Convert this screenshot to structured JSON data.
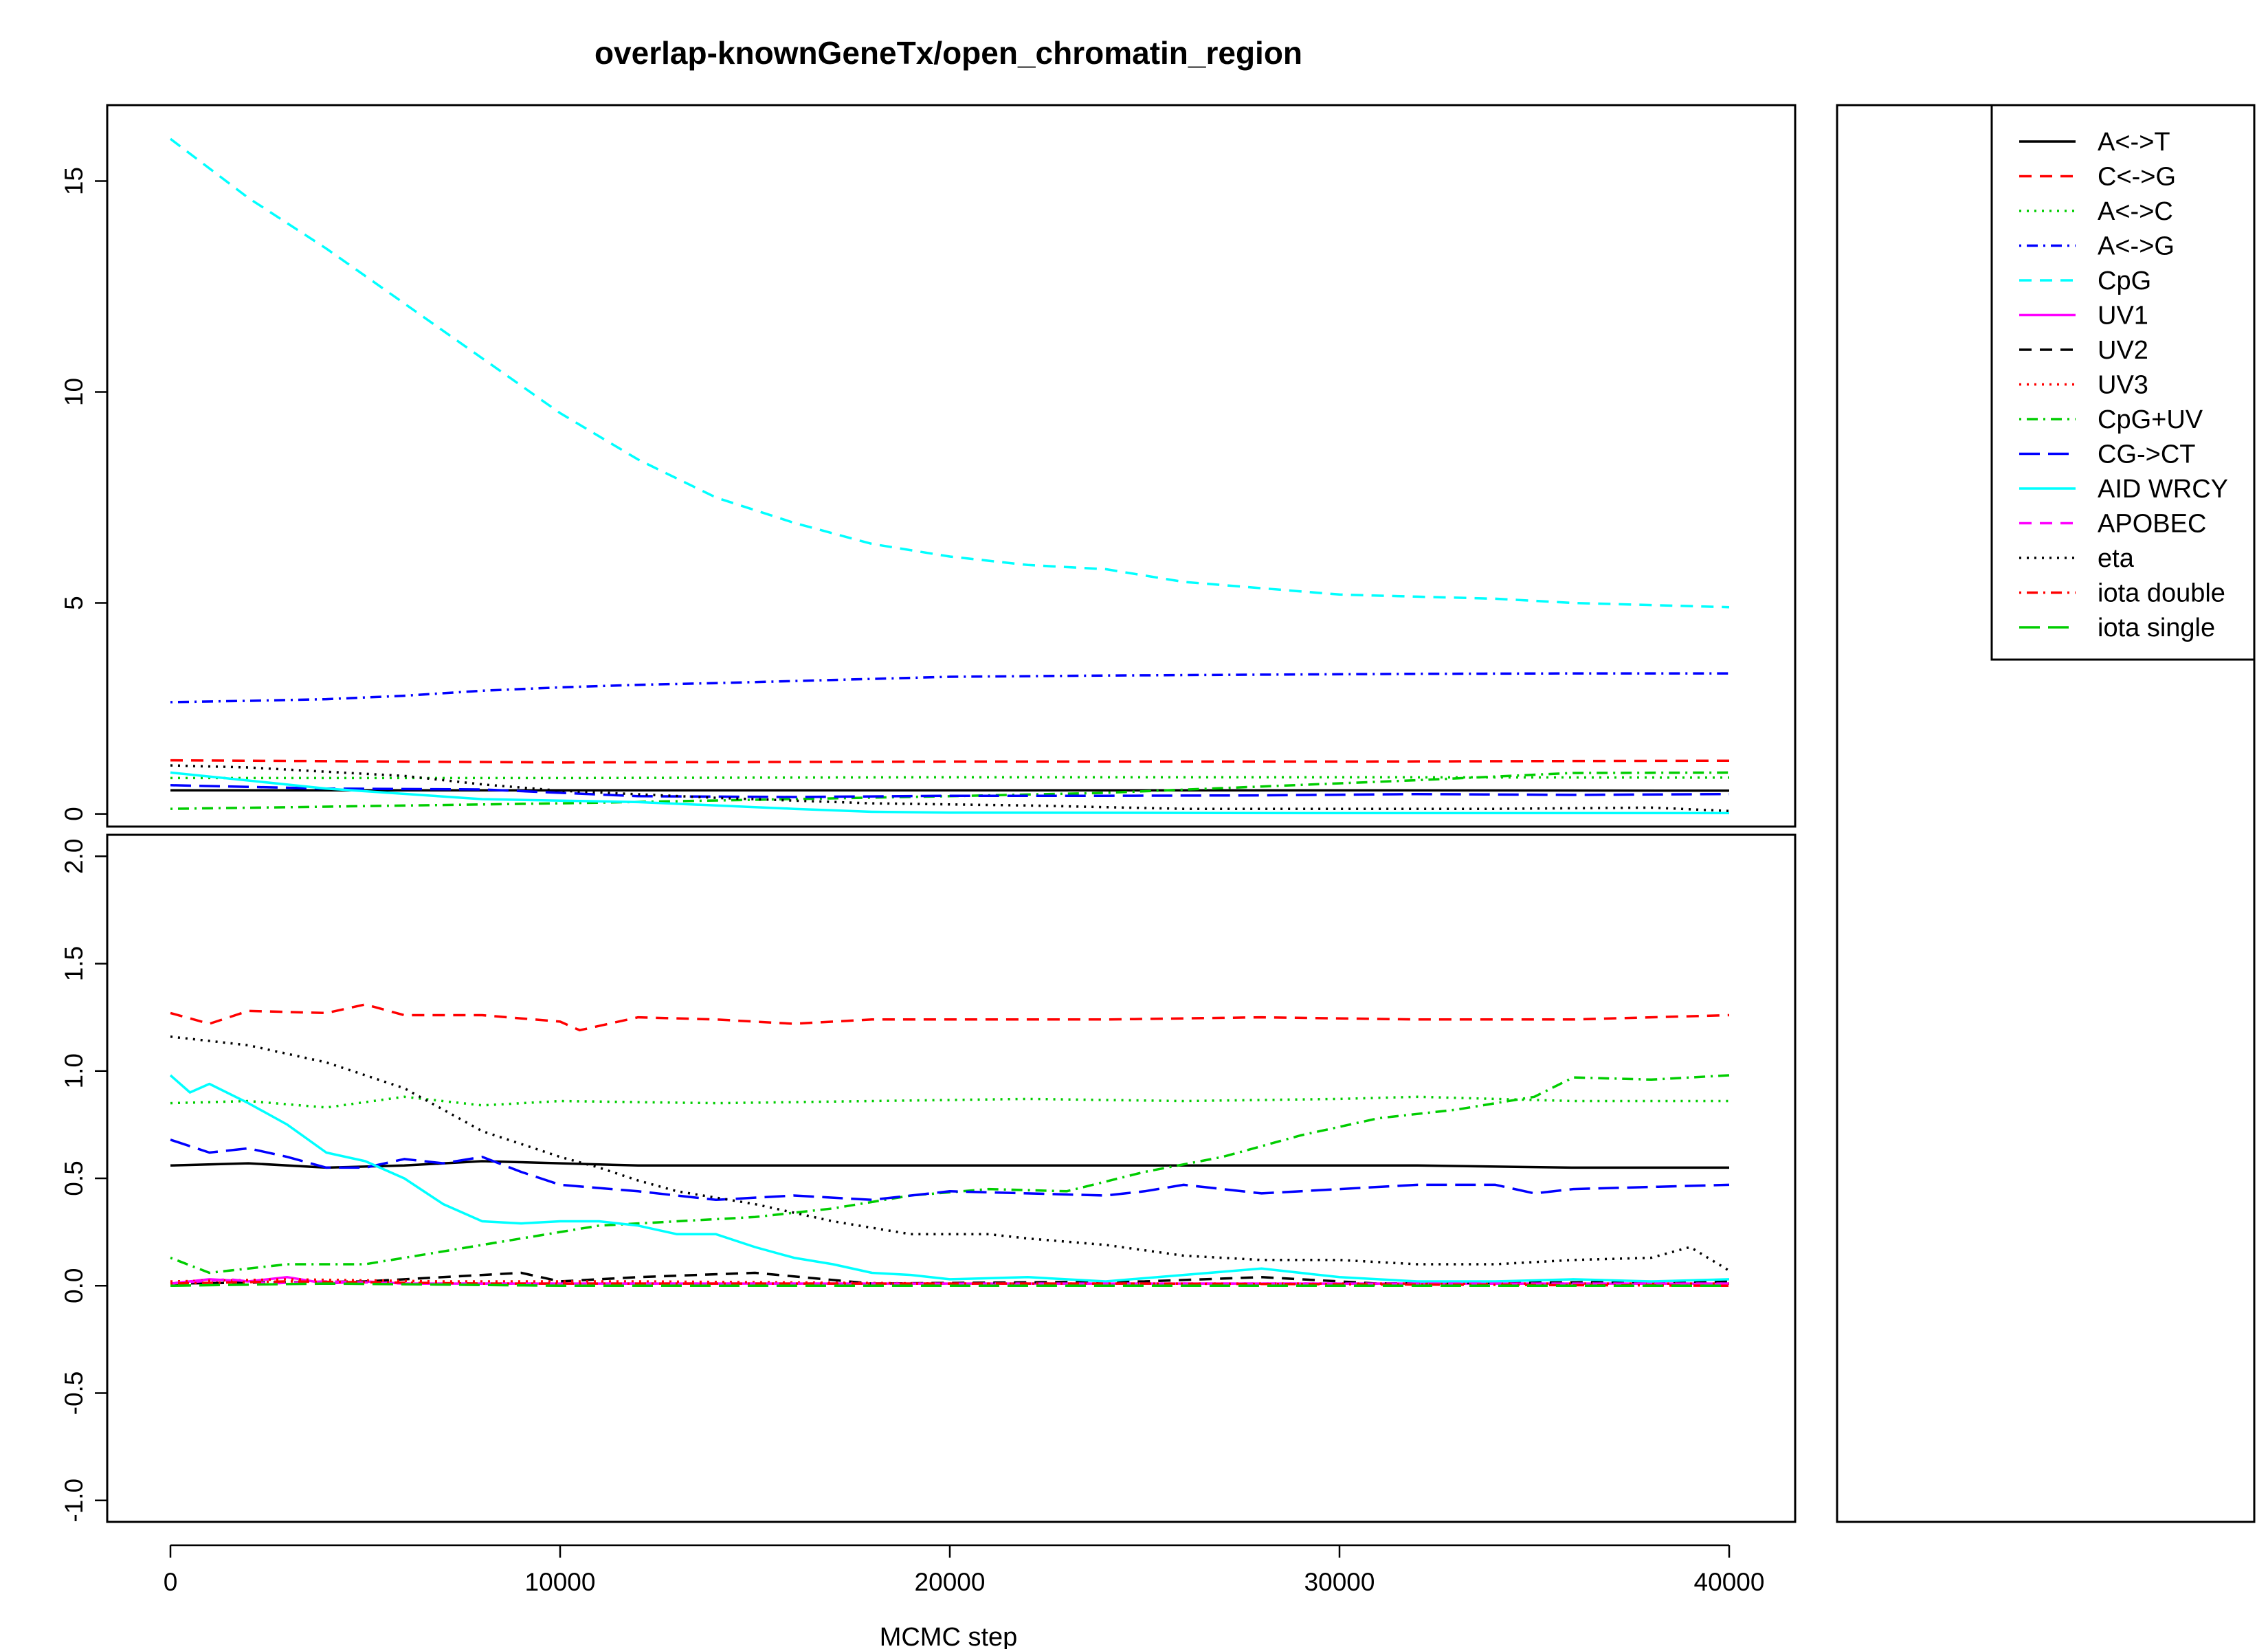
{
  "chart_data": {
    "type": "line",
    "title": "overlap-knownGeneTx/open_chromatin_region",
    "xlabel": "MCMC step",
    "x_range": [
      0,
      40000
    ],
    "x_ticks": [
      "0",
      "10000",
      "20000",
      "30000",
      "40000"
    ],
    "legend_position": "right",
    "legend": [
      {
        "name": "A<->T",
        "color": "#000000",
        "dash": "solid"
      },
      {
        "name": "C<->G",
        "color": "#ff0000",
        "dash": "dashed"
      },
      {
        "name": "A<->C",
        "color": "#00cd00",
        "dash": "dotted"
      },
      {
        "name": "A<->G",
        "color": "#0000ff",
        "dash": "dotdash"
      },
      {
        "name": "CpG",
        "color": "#00ffff",
        "dash": "dashed"
      },
      {
        "name": "UV1",
        "color": "#ff00ff",
        "dash": "solid"
      },
      {
        "name": "UV2",
        "color": "#000000",
        "dash": "dashed"
      },
      {
        "name": "UV3",
        "color": "#ff0000",
        "dash": "dotted"
      },
      {
        "name": "CpG+UV",
        "color": "#00cd00",
        "dash": "dotdash"
      },
      {
        "name": "CG->CT",
        "color": "#0000ff",
        "dash": "longdash"
      },
      {
        "name": "AID WRCY",
        "color": "#00ffff",
        "dash": "solid"
      },
      {
        "name": "APOBEC",
        "color": "#ff00ff",
        "dash": "dashed"
      },
      {
        "name": "eta",
        "color": "#000000",
        "dash": "dotted"
      },
      {
        "name": "iota double",
        "color": "#ff0000",
        "dash": "dotdash"
      },
      {
        "name": "iota single",
        "color": "#00cd00",
        "dash": "longdash"
      }
    ],
    "panels": [
      {
        "name": "full-range",
        "ylim": [
          -0.3,
          16.8
        ],
        "y_ticks": [
          "0",
          "5",
          "10",
          "15"
        ],
        "series": [
          {
            "name": "A<->T",
            "x": [
              0,
              10000,
              20000,
              30000,
              40000
            ],
            "y": [
              0.56,
              0.56,
              0.56,
              0.56,
              0.55
            ]
          },
          {
            "name": "C<->G",
            "x": [
              0,
              10000,
              20000,
              30000,
              40000
            ],
            "y": [
              1.27,
              1.22,
              1.24,
              1.24,
              1.26
            ]
          },
          {
            "name": "A<->C",
            "x": [
              0,
              10000,
              20000,
              30000,
              40000
            ],
            "y": [
              0.85,
              0.85,
              0.87,
              0.87,
              0.86
            ]
          },
          {
            "name": "A<->G",
            "x": [
              0,
              2000,
              4000,
              6000,
              8000,
              10000,
              12000,
              14000,
              16000,
              18000,
              20000,
              24000,
              28000,
              32000,
              36000,
              40000
            ],
            "y": [
              2.65,
              2.68,
              2.72,
              2.8,
              2.92,
              3.0,
              3.06,
              3.1,
              3.15,
              3.2,
              3.25,
              3.28,
              3.3,
              3.32,
              3.33,
              3.33
            ]
          },
          {
            "name": "CpG",
            "x": [
              0,
              2000,
              4000,
              6000,
              8000,
              10000,
              12000,
              14000,
              16000,
              18000,
              20000,
              22000,
              24000,
              26000,
              28000,
              30000,
              32000,
              34000,
              36000,
              38000,
              40000
            ],
            "y": [
              16.0,
              14.6,
              13.4,
              12.1,
              10.8,
              9.5,
              8.4,
              7.5,
              6.9,
              6.4,
              6.1,
              5.9,
              5.8,
              5.5,
              5.35,
              5.2,
              5.15,
              5.1,
              5.0,
              4.95,
              4.9
            ]
          },
          {
            "name": "CpG+UV",
            "x": [
              0,
              10000,
              20000,
              24000,
              28000,
              32000,
              36000,
              40000
            ],
            "y": [
              0.12,
              0.25,
              0.42,
              0.5,
              0.65,
              0.8,
              0.97,
              0.98
            ]
          },
          {
            "name": "CG->CT",
            "x": [
              0,
              4000,
              8000,
              12000,
              16000,
              20000,
              24000,
              28000,
              32000,
              36000,
              40000
            ],
            "y": [
              0.68,
              0.6,
              0.58,
              0.42,
              0.4,
              0.43,
              0.43,
              0.44,
              0.47,
              0.45,
              0.47
            ]
          },
          {
            "name": "AID WRCY",
            "x": [
              0,
              4000,
              8000,
              12000,
              16000,
              18000,
              20000,
              30000,
              40000
            ],
            "y": [
              0.98,
              0.6,
              0.35,
              0.28,
              0.12,
              0.05,
              0.03,
              0.02,
              0.02
            ]
          },
          {
            "name": "eta",
            "x": [
              0,
              2000,
              4000,
              6000,
              8000,
              10000,
              14000,
              18000,
              22000,
              26000,
              30000,
              34000,
              38000,
              40000
            ],
            "y": [
              1.15,
              1.1,
              1.0,
              0.9,
              0.7,
              0.55,
              0.38,
              0.25,
              0.2,
              0.12,
              0.12,
              0.12,
              0.15,
              0.07
            ]
          }
        ]
      },
      {
        "name": "zoomed",
        "ylim": [
          -1.1,
          2.1
        ],
        "y_ticks": [
          "-1.0",
          "-0.5",
          "0.0",
          "0.5",
          "1.0",
          "1.5",
          "2.0"
        ],
        "series": [
          {
            "name": "A<->T",
            "x": [
              0,
              2000,
              4000,
              6000,
              8000,
              10000,
              12000,
              16000,
              20000,
              24000,
              28000,
              32000,
              36000,
              40000
            ],
            "y": [
              0.56,
              0.57,
              0.55,
              0.56,
              0.58,
              0.57,
              0.56,
              0.56,
              0.56,
              0.56,
              0.56,
              0.56,
              0.55,
              0.55
            ]
          },
          {
            "name": "C<->G",
            "x": [
              0,
              1000,
              2000,
              4000,
              5000,
              6000,
              8000,
              10000,
              10500,
              12000,
              14000,
              16000,
              18000,
              20000,
              24000,
              28000,
              32000,
              36000,
              40000
            ],
            "y": [
              1.27,
              1.22,
              1.28,
              1.27,
              1.31,
              1.26,
              1.26,
              1.23,
              1.19,
              1.25,
              1.24,
              1.22,
              1.24,
              1.24,
              1.24,
              1.25,
              1.24,
              1.24,
              1.26
            ]
          },
          {
            "name": "A<->C",
            "x": [
              0,
              2000,
              4000,
              6000,
              8000,
              10000,
              14000,
              18000,
              22000,
              26000,
              30000,
              32000,
              36000,
              40000
            ],
            "y": [
              0.85,
              0.86,
              0.83,
              0.88,
              0.84,
              0.86,
              0.85,
              0.86,
              0.87,
              0.86,
              0.87,
              0.88,
              0.86,
              0.86
            ]
          },
          {
            "name": "UV1",
            "x": [
              0,
              1000,
              2000,
              3000,
              4000,
              5000,
              6000,
              10000,
              20000,
              30000,
              40000
            ],
            "y": [
              0.01,
              0.03,
              0.02,
              0.04,
              0.01,
              0.02,
              0.01,
              0.01,
              0.01,
              0.01,
              0.01
            ]
          },
          {
            "name": "UV2",
            "x": [
              0,
              5000,
              9000,
              10000,
              12000,
              15000,
              18000,
              25000,
              28000,
              31000,
              40000
            ],
            "y": [
              0.01,
              0.02,
              0.06,
              0.02,
              0.04,
              0.06,
              0.01,
              0.02,
              0.04,
              0.01,
              0.02
            ]
          },
          {
            "name": "UV3",
            "x": [
              0,
              3000,
              7000,
              12000,
              20000,
              30000,
              40000
            ],
            "y": [
              0.02,
              0.03,
              0.02,
              0.02,
              0.01,
              0.01,
              0.01
            ]
          },
          {
            "name": "CpG+UV",
            "x": [
              0,
              1000,
              3000,
              5000,
              7000,
              9000,
              11000,
              13000,
              15000,
              17000,
              19000,
              21000,
              23000,
              25000,
              27000,
              29000,
              31000,
              33000,
              35000,
              36000,
              38000,
              40000
            ],
            "y": [
              0.13,
              0.06,
              0.1,
              0.1,
              0.16,
              0.22,
              0.28,
              0.3,
              0.32,
              0.36,
              0.42,
              0.45,
              0.44,
              0.53,
              0.6,
              0.7,
              0.78,
              0.82,
              0.88,
              0.97,
              0.96,
              0.98
            ]
          },
          {
            "name": "CG->CT",
            "x": [
              0,
              1000,
              2000,
              3000,
              4000,
              5000,
              6000,
              7000,
              8000,
              9000,
              10000,
              12000,
              14000,
              16000,
              18000,
              20000,
              22000,
              24000,
              25000,
              26000,
              28000,
              30000,
              32000,
              34000,
              35000,
              36000,
              38000,
              40000
            ],
            "y": [
              0.68,
              0.62,
              0.64,
              0.6,
              0.55,
              0.55,
              0.59,
              0.57,
              0.6,
              0.53,
              0.47,
              0.44,
              0.4,
              0.42,
              0.4,
              0.44,
              0.43,
              0.42,
              0.44,
              0.47,
              0.43,
              0.45,
              0.47,
              0.47,
              0.43,
              0.45,
              0.46,
              0.47
            ]
          },
          {
            "name": "AID WRCY",
            "x": [
              0,
              500,
              1000,
              2000,
              3000,
              4000,
              5000,
              6000,
              7000,
              8000,
              9000,
              10000,
              11000,
              12000,
              13000,
              14000,
              15000,
              16000,
              17000,
              18000,
              19000,
              20000,
              22000,
              24000,
              26000,
              28000,
              30000,
              32000,
              34000,
              36000,
              38000,
              40000
            ],
            "y": [
              0.98,
              0.9,
              0.94,
              0.85,
              0.75,
              0.62,
              0.58,
              0.5,
              0.38,
              0.3,
              0.29,
              0.3,
              0.3,
              0.28,
              0.24,
              0.24,
              0.18,
              0.13,
              0.1,
              0.06,
              0.05,
              0.03,
              0.04,
              0.02,
              0.05,
              0.08,
              0.04,
              0.02,
              0.02,
              0.03,
              0.02,
              0.03
            ]
          },
          {
            "name": "APOBEC",
            "x": [
              0,
              1500,
              2500,
              4000,
              6000,
              10000,
              20000,
              30000,
              40000
            ],
            "y": [
              0.01,
              0.03,
              0.01,
              0.02,
              0.01,
              0.01,
              0.01,
              0.01,
              0.01
            ]
          },
          {
            "name": "eta",
            "x": [
              0,
              1000,
              2000,
              3000,
              4000,
              5000,
              6000,
              7000,
              8000,
              9000,
              10000,
              11000,
              12000,
              13000,
              14000,
              15000,
              16000,
              17000,
              18000,
              19000,
              20000,
              21000,
              22000,
              24000,
              26000,
              28000,
              30000,
              32000,
              34000,
              36000,
              38000,
              39000,
              40000
            ],
            "y": [
              1.16,
              1.14,
              1.12,
              1.08,
              1.04,
              0.98,
              0.92,
              0.82,
              0.72,
              0.66,
              0.6,
              0.55,
              0.49,
              0.44,
              0.41,
              0.38,
              0.34,
              0.3,
              0.27,
              0.24,
              0.24,
              0.24,
              0.22,
              0.19,
              0.14,
              0.12,
              0.12,
              0.1,
              0.1,
              0.12,
              0.13,
              0.18,
              0.07
            ]
          },
          {
            "name": "iota double",
            "x": [
              0,
              3000,
              8000,
              15000,
              25000,
              40000
            ],
            "y": [
              0.01,
              0.02,
              0.01,
              0.01,
              0.01,
              0.0
            ]
          },
          {
            "name": "iota single",
            "x": [
              0,
              4000,
              10000,
              20000,
              30000,
              40000
            ],
            "y": [
              0.0,
              0.01,
              0.0,
              0.0,
              0.0,
              0.0
            ]
          }
        ]
      }
    ]
  }
}
